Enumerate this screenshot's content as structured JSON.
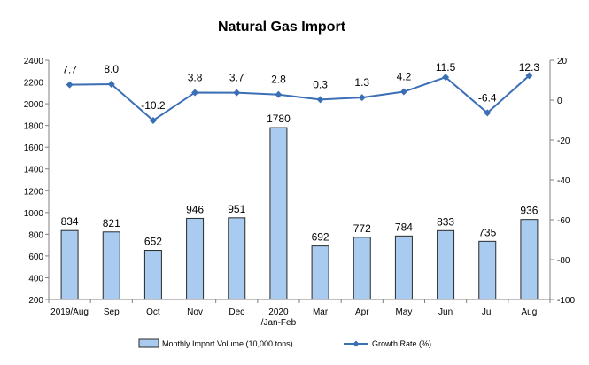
{
  "chart_data": {
    "type": "bar",
    "title": "Natural Gas Import",
    "categories": [
      "2019/Aug",
      "Sep",
      "Oct",
      "Nov",
      "Dec",
      "2020\n/Jan-Feb",
      "Mar",
      "Apr",
      "May",
      "Jun",
      "Jul",
      "Aug"
    ],
    "series": [
      {
        "name": "Monthly Import Volume (10,000 tons)",
        "type": "bar",
        "axis": "left",
        "values": [
          834,
          821,
          652,
          946,
          951,
          1780,
          692,
          772,
          784,
          833,
          735,
          936
        ],
        "labels": [
          "834",
          "821",
          "652",
          "946",
          "951",
          "1780",
          "692",
          "772",
          "784",
          "833",
          "735",
          "936"
        ]
      },
      {
        "name": "Growth Rate (%)",
        "type": "line",
        "axis": "right",
        "values": [
          7.7,
          8.0,
          -10.2,
          3.8,
          3.7,
          2.8,
          0.3,
          1.3,
          4.2,
          11.5,
          -6.4,
          12.3
        ],
        "labels": [
          "7.7",
          "8.0",
          "-10.2",
          "3.8",
          "3.7",
          "2.8",
          "0.3",
          "1.3",
          "4.2",
          "11.5",
          "-6.4",
          "12.3"
        ]
      }
    ],
    "y_left": {
      "ylim": [
        200,
        2400
      ],
      "ticks": [
        "200",
        "400",
        "600",
        "800",
        "1000",
        "1200",
        "1400",
        "1600",
        "1800",
        "2000",
        "2200",
        "2400"
      ]
    },
    "y_right": {
      "ylim": [
        -100,
        20
      ],
      "ticks": [
        "-100",
        "-80",
        "-60",
        "-40",
        "-20",
        "0",
        "20"
      ]
    },
    "grid": false,
    "legend_position": "bottom",
    "colors": {
      "bar_fill": "#a9cbf0",
      "bar_stroke": "#2a2a2a",
      "line": "#3a6eb5",
      "axis": "#808080"
    }
  }
}
